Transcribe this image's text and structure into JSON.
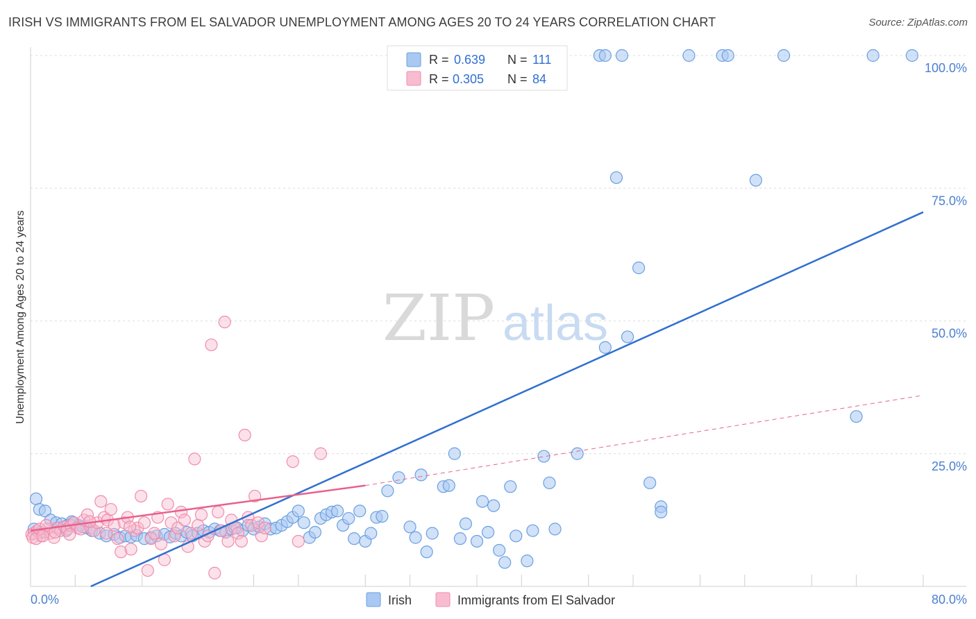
{
  "chart_data": {
    "type": "scatter",
    "title": "IRISH VS IMMIGRANTS FROM EL SALVADOR UNEMPLOYMENT AMONG AGES 20 TO 24 YEARS CORRELATION CHART",
    "source": "Source: ZipAtlas.com",
    "xlabel": "",
    "ylabel": "Unemployment Among Ages 20 to 24 years",
    "xlim": [
      0,
      80
    ],
    "ylim": [
      0,
      100
    ],
    "x_tick_labels": [
      "0.0%",
      "80.0%"
    ],
    "y_tick_labels": [
      "25.0%",
      "50.0%",
      "75.0%",
      "100.0%"
    ],
    "y_tick_values": [
      25,
      50,
      75,
      100
    ],
    "watermark": {
      "zip": "ZIP",
      "atlas": "atlas"
    },
    "legend": {
      "r_label": "R =",
      "n_label": "N =",
      "entries": [
        {
          "name": "Irish",
          "r": "0.639",
          "n": "111",
          "color": "#6a9fe0"
        },
        {
          "name": "Immigrants from El Salvador",
          "r": "0.305",
          "n": "84",
          "color": "#f08cab"
        }
      ]
    },
    "colors": {
      "irish_fill": "#a9c8f2",
      "irish_stroke": "#6a9fe0",
      "irish_line": "#2f6fd0",
      "salv_fill": "#f7bcd0",
      "salv_stroke": "#f08cab",
      "salv_line": "#e8608c",
      "axis_label": "#4a7fd0"
    },
    "series": [
      {
        "name": "Irish",
        "trend": {
          "x0": 5.4,
          "y0": 0,
          "x1": 80,
          "y1": 70.5
        },
        "points": [
          [
            0.5,
            16.5
          ],
          [
            0.8,
            14.5
          ],
          [
            1.3,
            14.2
          ],
          [
            1.8,
            12.5
          ],
          [
            2.3,
            12
          ],
          [
            2.8,
            11.8
          ],
          [
            3.3,
            11.5
          ],
          [
            3.8,
            12
          ],
          [
            4.3,
            11.5
          ],
          [
            5,
            11
          ],
          [
            5.5,
            10.5
          ],
          [
            6.2,
            10
          ],
          [
            6.8,
            9.5
          ],
          [
            7.5,
            9.8
          ],
          [
            8,
            9.2
          ],
          [
            8.5,
            9.5
          ],
          [
            9,
            9.3
          ],
          [
            9.5,
            9.6
          ],
          [
            10.2,
            9
          ],
          [
            10.8,
            9.2
          ],
          [
            11.3,
            9.5
          ],
          [
            12,
            9.8
          ],
          [
            12.5,
            9.3
          ],
          [
            13,
            10
          ],
          [
            13.5,
            9.5
          ],
          [
            14,
            10.2
          ],
          [
            14.5,
            9.5
          ],
          [
            15,
            10
          ],
          [
            15.5,
            10.5
          ],
          [
            16,
            10.2
          ],
          [
            16.5,
            10.8
          ],
          [
            17,
            10.5
          ],
          [
            17.5,
            10.2
          ],
          [
            18,
            10.8
          ],
          [
            18.5,
            11
          ],
          [
            19,
            10.5
          ],
          [
            19.5,
            11.5
          ],
          [
            20,
            10.8
          ],
          [
            20.5,
            11.2
          ],
          [
            21,
            11.8
          ],
          [
            21.5,
            10.8
          ],
          [
            22,
            11
          ],
          [
            22.5,
            11.5
          ],
          [
            23,
            12.2
          ],
          [
            23.5,
            13
          ],
          [
            24,
            14.2
          ],
          [
            24.5,
            12
          ],
          [
            25,
            9.2
          ],
          [
            25.5,
            10.2
          ],
          [
            26,
            12.8
          ],
          [
            26.5,
            13.5
          ],
          [
            27,
            14
          ],
          [
            27.5,
            14.2
          ],
          [
            28,
            11.5
          ],
          [
            28.5,
            12.8
          ],
          [
            29,
            9
          ],
          [
            29.5,
            14.2
          ],
          [
            30,
            8.5
          ],
          [
            30.5,
            10
          ],
          [
            31,
            13
          ],
          [
            31.5,
            13.2
          ],
          [
            32,
            18
          ],
          [
            33,
            20.5
          ],
          [
            34,
            11.2
          ],
          [
            34.5,
            9.2
          ],
          [
            35,
            21
          ],
          [
            35.5,
            6.5
          ],
          [
            36,
            10
          ],
          [
            37,
            18.8
          ],
          [
            37.5,
            19
          ],
          [
            38,
            25
          ],
          [
            38.5,
            9
          ],
          [
            39,
            11.8
          ],
          [
            40,
            8.5
          ],
          [
            40.5,
            16
          ],
          [
            41,
            10.2
          ],
          [
            41.5,
            15.2
          ],
          [
            42,
            6.8
          ],
          [
            42.5,
            4.5
          ],
          [
            43,
            18.8
          ],
          [
            43.5,
            9.5
          ],
          [
            44.5,
            4.8
          ],
          [
            45,
            10.5
          ],
          [
            46,
            24.5
          ],
          [
            46.5,
            19.5
          ],
          [
            47,
            10.8
          ],
          [
            49,
            25
          ],
          [
            51,
            100
          ],
          [
            51.5,
            100
          ],
          [
            53,
            100
          ],
          [
            52.5,
            77
          ],
          [
            54.5,
            60
          ],
          [
            51.5,
            45
          ],
          [
            53.5,
            47
          ],
          [
            55.5,
            19.5
          ],
          [
            56.5,
            15
          ],
          [
            56.5,
            14
          ],
          [
            59,
            100
          ],
          [
            62,
            100
          ],
          [
            62.5,
            100
          ],
          [
            65,
            76.5
          ],
          [
            67.5,
            100
          ],
          [
            74,
            32
          ],
          [
            75.5,
            100
          ],
          [
            79,
            100
          ],
          [
            0.3,
            10.8
          ],
          [
            0.9,
            10.2
          ],
          [
            2.5,
            11
          ],
          [
            3.2,
            10.5
          ],
          [
            3.7,
            12.2
          ],
          [
            4.7,
            11.2
          ]
        ]
      },
      {
        "name": "Immigrants from El Salvador",
        "trend_solid": {
          "x0": 0,
          "y0": 10.5,
          "x1": 30,
          "y1": 19
        },
        "trend_dashed": {
          "x0": 30,
          "y0": 19,
          "x1": 80,
          "y1": 36
        },
        "points": [
          [
            0.1,
            9.8
          ],
          [
            0.3,
            10
          ],
          [
            0.6,
            10.5
          ],
          [
            0.9,
            9.5
          ],
          [
            1.2,
            10.2
          ],
          [
            1.5,
            10.8
          ],
          [
            1.8,
            10
          ],
          [
            2.1,
            9.2
          ],
          [
            2.4,
            11
          ],
          [
            2.7,
            10.5
          ],
          [
            3,
            11.2
          ],
          [
            3.3,
            10.8
          ],
          [
            3.6,
            11.5
          ],
          [
            3.9,
            12
          ],
          [
            4.2,
            11
          ],
          [
            4.5,
            10.8
          ],
          [
            4.8,
            12.5
          ],
          [
            5.1,
            13.5
          ],
          [
            5.4,
            11
          ],
          [
            5.7,
            10.5
          ],
          [
            6,
            12
          ],
          [
            6.3,
            16
          ],
          [
            6.6,
            13
          ],
          [
            6.9,
            12.5
          ],
          [
            7.2,
            14.5
          ],
          [
            7.5,
            11.5
          ],
          [
            7.8,
            9
          ],
          [
            8.1,
            6.5
          ],
          [
            8.4,
            12
          ],
          [
            8.7,
            13
          ],
          [
            9,
            7
          ],
          [
            9.3,
            10.5
          ],
          [
            9.6,
            11
          ],
          [
            9.9,
            17
          ],
          [
            10.2,
            12
          ],
          [
            10.5,
            3
          ],
          [
            10.8,
            9
          ],
          [
            11.1,
            10
          ],
          [
            11.4,
            13
          ],
          [
            11.7,
            8
          ],
          [
            12,
            5
          ],
          [
            12.3,
            15.5
          ],
          [
            12.6,
            12
          ],
          [
            12.9,
            9.5
          ],
          [
            13.2,
            11
          ],
          [
            13.5,
            14
          ],
          [
            13.8,
            12.5
          ],
          [
            14.1,
            7.5
          ],
          [
            14.4,
            10
          ],
          [
            14.7,
            24
          ],
          [
            15,
            11.5
          ],
          [
            15.3,
            13.5
          ],
          [
            15.6,
            8.5
          ],
          [
            15.9,
            9.5
          ],
          [
            16.2,
            45.5
          ],
          [
            16.5,
            2.5
          ],
          [
            16.8,
            14
          ],
          [
            17.1,
            10.5
          ],
          [
            17.4,
            49.8
          ],
          [
            17.7,
            8.5
          ],
          [
            18,
            12.5
          ],
          [
            18.3,
            11
          ],
          [
            18.6,
            10
          ],
          [
            18.9,
            8.5
          ],
          [
            19.2,
            28.5
          ],
          [
            19.5,
            13
          ],
          [
            19.8,
            11.5
          ],
          [
            20.1,
            17
          ],
          [
            20.4,
            12
          ],
          [
            20.7,
            9.5
          ],
          [
            21,
            11
          ],
          [
            23.5,
            23.5
          ],
          [
            24,
            8.5
          ],
          [
            26,
            25
          ],
          [
            0.2,
            9.2
          ],
          [
            0.5,
            9
          ],
          [
            0.8,
            10.8
          ],
          [
            1.1,
            9.5
          ],
          [
            1.4,
            11.5
          ],
          [
            2.2,
            10.2
          ],
          [
            3.5,
            9.8
          ],
          [
            5.3,
            12.2
          ],
          [
            6.8,
            10
          ],
          [
            8.9,
            11.2
          ]
        ]
      }
    ]
  }
}
